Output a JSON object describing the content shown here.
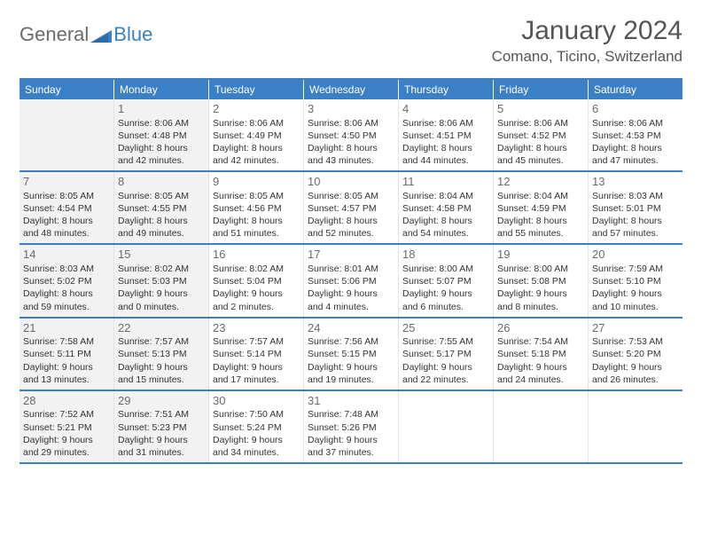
{
  "logo": {
    "word1": "General",
    "word2": "Blue"
  },
  "header": {
    "title": "January 2024",
    "location": "Comano, Ticino, Switzerland"
  },
  "colors": {
    "accent": "#3b7fc4",
    "text": "#333333",
    "muted": "#6b6b6b",
    "shade": "#f2f2f2"
  },
  "weekdays": [
    "Sunday",
    "Monday",
    "Tuesday",
    "Wednesday",
    "Thursday",
    "Friday",
    "Saturday"
  ],
  "weeks": [
    [
      {
        "num": "",
        "shaded": true,
        "sunrise": "",
        "sunset": "",
        "daylight1": "",
        "daylight2": ""
      },
      {
        "num": "1",
        "shaded": true,
        "sunrise": "Sunrise: 8:06 AM",
        "sunset": "Sunset: 4:48 PM",
        "daylight1": "Daylight: 8 hours",
        "daylight2": "and 42 minutes."
      },
      {
        "num": "2",
        "shaded": false,
        "sunrise": "Sunrise: 8:06 AM",
        "sunset": "Sunset: 4:49 PM",
        "daylight1": "Daylight: 8 hours",
        "daylight2": "and 42 minutes."
      },
      {
        "num": "3",
        "shaded": false,
        "sunrise": "Sunrise: 8:06 AM",
        "sunset": "Sunset: 4:50 PM",
        "daylight1": "Daylight: 8 hours",
        "daylight2": "and 43 minutes."
      },
      {
        "num": "4",
        "shaded": false,
        "sunrise": "Sunrise: 8:06 AM",
        "sunset": "Sunset: 4:51 PM",
        "daylight1": "Daylight: 8 hours",
        "daylight2": "and 44 minutes."
      },
      {
        "num": "5",
        "shaded": false,
        "sunrise": "Sunrise: 8:06 AM",
        "sunset": "Sunset: 4:52 PM",
        "daylight1": "Daylight: 8 hours",
        "daylight2": "and 45 minutes."
      },
      {
        "num": "6",
        "shaded": false,
        "sunrise": "Sunrise: 8:06 AM",
        "sunset": "Sunset: 4:53 PM",
        "daylight1": "Daylight: 8 hours",
        "daylight2": "and 47 minutes."
      }
    ],
    [
      {
        "num": "7",
        "shaded": true,
        "sunrise": "Sunrise: 8:05 AM",
        "sunset": "Sunset: 4:54 PM",
        "daylight1": "Daylight: 8 hours",
        "daylight2": "and 48 minutes."
      },
      {
        "num": "8",
        "shaded": true,
        "sunrise": "Sunrise: 8:05 AM",
        "sunset": "Sunset: 4:55 PM",
        "daylight1": "Daylight: 8 hours",
        "daylight2": "and 49 minutes."
      },
      {
        "num": "9",
        "shaded": false,
        "sunrise": "Sunrise: 8:05 AM",
        "sunset": "Sunset: 4:56 PM",
        "daylight1": "Daylight: 8 hours",
        "daylight2": "and 51 minutes."
      },
      {
        "num": "10",
        "shaded": false,
        "sunrise": "Sunrise: 8:05 AM",
        "sunset": "Sunset: 4:57 PM",
        "daylight1": "Daylight: 8 hours",
        "daylight2": "and 52 minutes."
      },
      {
        "num": "11",
        "shaded": false,
        "sunrise": "Sunrise: 8:04 AM",
        "sunset": "Sunset: 4:58 PM",
        "daylight1": "Daylight: 8 hours",
        "daylight2": "and 54 minutes."
      },
      {
        "num": "12",
        "shaded": false,
        "sunrise": "Sunrise: 8:04 AM",
        "sunset": "Sunset: 4:59 PM",
        "daylight1": "Daylight: 8 hours",
        "daylight2": "and 55 minutes."
      },
      {
        "num": "13",
        "shaded": false,
        "sunrise": "Sunrise: 8:03 AM",
        "sunset": "Sunset: 5:01 PM",
        "daylight1": "Daylight: 8 hours",
        "daylight2": "and 57 minutes."
      }
    ],
    [
      {
        "num": "14",
        "shaded": true,
        "sunrise": "Sunrise: 8:03 AM",
        "sunset": "Sunset: 5:02 PM",
        "daylight1": "Daylight: 8 hours",
        "daylight2": "and 59 minutes."
      },
      {
        "num": "15",
        "shaded": true,
        "sunrise": "Sunrise: 8:02 AM",
        "sunset": "Sunset: 5:03 PM",
        "daylight1": "Daylight: 9 hours",
        "daylight2": "and 0 minutes."
      },
      {
        "num": "16",
        "shaded": false,
        "sunrise": "Sunrise: 8:02 AM",
        "sunset": "Sunset: 5:04 PM",
        "daylight1": "Daylight: 9 hours",
        "daylight2": "and 2 minutes."
      },
      {
        "num": "17",
        "shaded": false,
        "sunrise": "Sunrise: 8:01 AM",
        "sunset": "Sunset: 5:06 PM",
        "daylight1": "Daylight: 9 hours",
        "daylight2": "and 4 minutes."
      },
      {
        "num": "18",
        "shaded": false,
        "sunrise": "Sunrise: 8:00 AM",
        "sunset": "Sunset: 5:07 PM",
        "daylight1": "Daylight: 9 hours",
        "daylight2": "and 6 minutes."
      },
      {
        "num": "19",
        "shaded": false,
        "sunrise": "Sunrise: 8:00 AM",
        "sunset": "Sunset: 5:08 PM",
        "daylight1": "Daylight: 9 hours",
        "daylight2": "and 8 minutes."
      },
      {
        "num": "20",
        "shaded": false,
        "sunrise": "Sunrise: 7:59 AM",
        "sunset": "Sunset: 5:10 PM",
        "daylight1": "Daylight: 9 hours",
        "daylight2": "and 10 minutes."
      }
    ],
    [
      {
        "num": "21",
        "shaded": true,
        "sunrise": "Sunrise: 7:58 AM",
        "sunset": "Sunset: 5:11 PM",
        "daylight1": "Daylight: 9 hours",
        "daylight2": "and 13 minutes."
      },
      {
        "num": "22",
        "shaded": true,
        "sunrise": "Sunrise: 7:57 AM",
        "sunset": "Sunset: 5:13 PM",
        "daylight1": "Daylight: 9 hours",
        "daylight2": "and 15 minutes."
      },
      {
        "num": "23",
        "shaded": false,
        "sunrise": "Sunrise: 7:57 AM",
        "sunset": "Sunset: 5:14 PM",
        "daylight1": "Daylight: 9 hours",
        "daylight2": "and 17 minutes."
      },
      {
        "num": "24",
        "shaded": false,
        "sunrise": "Sunrise: 7:56 AM",
        "sunset": "Sunset: 5:15 PM",
        "daylight1": "Daylight: 9 hours",
        "daylight2": "and 19 minutes."
      },
      {
        "num": "25",
        "shaded": false,
        "sunrise": "Sunrise: 7:55 AM",
        "sunset": "Sunset: 5:17 PM",
        "daylight1": "Daylight: 9 hours",
        "daylight2": "and 22 minutes."
      },
      {
        "num": "26",
        "shaded": false,
        "sunrise": "Sunrise: 7:54 AM",
        "sunset": "Sunset: 5:18 PM",
        "daylight1": "Daylight: 9 hours",
        "daylight2": "and 24 minutes."
      },
      {
        "num": "27",
        "shaded": false,
        "sunrise": "Sunrise: 7:53 AM",
        "sunset": "Sunset: 5:20 PM",
        "daylight1": "Daylight: 9 hours",
        "daylight2": "and 26 minutes."
      }
    ],
    [
      {
        "num": "28",
        "shaded": true,
        "sunrise": "Sunrise: 7:52 AM",
        "sunset": "Sunset: 5:21 PM",
        "daylight1": "Daylight: 9 hours",
        "daylight2": "and 29 minutes."
      },
      {
        "num": "29",
        "shaded": true,
        "sunrise": "Sunrise: 7:51 AM",
        "sunset": "Sunset: 5:23 PM",
        "daylight1": "Daylight: 9 hours",
        "daylight2": "and 31 minutes."
      },
      {
        "num": "30",
        "shaded": false,
        "sunrise": "Sunrise: 7:50 AM",
        "sunset": "Sunset: 5:24 PM",
        "daylight1": "Daylight: 9 hours",
        "daylight2": "and 34 minutes."
      },
      {
        "num": "31",
        "shaded": false,
        "sunrise": "Sunrise: 7:48 AM",
        "sunset": "Sunset: 5:26 PM",
        "daylight1": "Daylight: 9 hours",
        "daylight2": "and 37 minutes."
      },
      {
        "num": "",
        "shaded": false,
        "sunrise": "",
        "sunset": "",
        "daylight1": "",
        "daylight2": ""
      },
      {
        "num": "",
        "shaded": false,
        "sunrise": "",
        "sunset": "",
        "daylight1": "",
        "daylight2": ""
      },
      {
        "num": "",
        "shaded": false,
        "sunrise": "",
        "sunset": "",
        "daylight1": "",
        "daylight2": ""
      }
    ]
  ]
}
